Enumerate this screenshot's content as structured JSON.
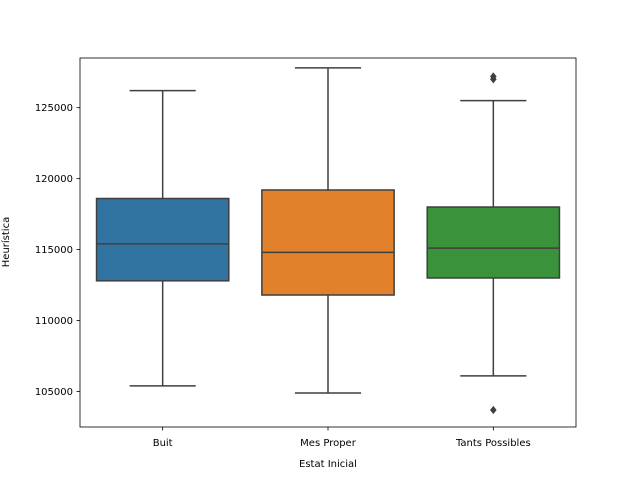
{
  "chart_data": {
    "type": "box",
    "xlabel": "Estat Inicial",
    "ylabel": "Heurística",
    "ylim": [
      102500,
      128500
    ],
    "yticks": [
      105000,
      110000,
      115000,
      120000,
      125000
    ],
    "ytick_labels": [
      "105000",
      "110000",
      "115000",
      "120000",
      "125000"
    ],
    "grid": false,
    "categories": [
      "Buit",
      "Mes Proper",
      "Tants Possibles"
    ],
    "boxes": [
      {
        "category": "Buit",
        "color": "#3274a1",
        "whisker_low": 105400,
        "q1": 112800,
        "median": 115400,
        "q3": 118600,
        "whisker_high": 126200,
        "outliers": []
      },
      {
        "category": "Mes Proper",
        "color": "#e1812c",
        "whisker_low": 104900,
        "q1": 111800,
        "median": 114800,
        "q3": 119200,
        "whisker_high": 127800,
        "outliers": []
      },
      {
        "category": "Tants Possibles",
        "color": "#3a923a",
        "whisker_low": 106100,
        "q1": 113000,
        "median": 115100,
        "q3": 118000,
        "whisker_high": 125500,
        "outliers": [
          103700,
          127000,
          127200
        ]
      }
    ],
    "line_color": "#3f3f3f"
  }
}
